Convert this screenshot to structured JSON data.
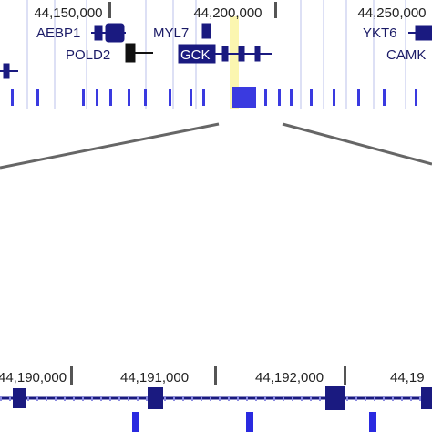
{
  "top_ruler": {
    "labels": [
      "44,150,000",
      "44,200,000",
      "44,250,000"
    ]
  },
  "genes": {
    "labels": [
      "AEBP1",
      "MYL7",
      "YKT6",
      "POLD2",
      "GCK",
      "CAMK"
    ]
  },
  "bottom_ruler": {
    "labels": [
      "44,190,000",
      "44,191,000",
      "44,192,000",
      "44,19"
    ]
  }
}
